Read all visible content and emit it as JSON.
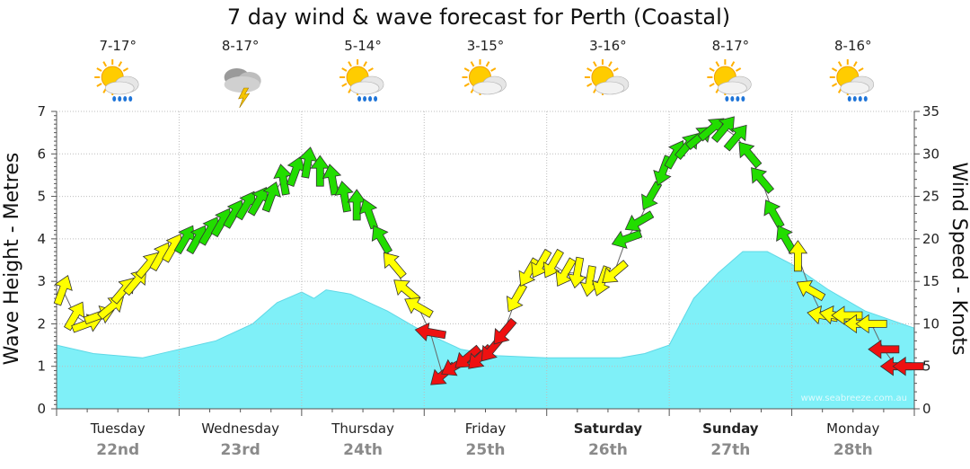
{
  "chart_data": {
    "type": "area",
    "title": "7 day wind & wave forecast for Perth (Coastal)",
    "ylabel": "Wave Height - Metres",
    "y2label": "Wind Speed - Knots",
    "ylim": [
      0,
      7
    ],
    "y2lim": [
      0,
      35
    ],
    "yticks": [
      "0",
      "1",
      "2",
      "3",
      "4",
      "5",
      "6",
      "7"
    ],
    "y2ticks": [
      "0",
      "5",
      "10",
      "15",
      "20",
      "25",
      "30",
      "35"
    ],
    "grid": true,
    "watermark": "www.seabreeze.com.au",
    "days": [
      {
        "name": "Tuesday",
        "date": "22nd",
        "temp": "7-17°",
        "icon": "sun-cloud-rain-icon",
        "bold": false
      },
      {
        "name": "Wednesday",
        "date": "23rd",
        "temp": "8-17°",
        "icon": "thunderstorm-icon",
        "bold": false
      },
      {
        "name": "Thursday",
        "date": "24th",
        "temp": "5-14°",
        "icon": "sun-cloud-rain-icon",
        "bold": false
      },
      {
        "name": "Friday",
        "date": "25th",
        "temp": "3-15°",
        "icon": "partly-cloudy-icon",
        "bold": false
      },
      {
        "name": "Saturday",
        "date": "26th",
        "temp": "3-16°",
        "icon": "partly-cloudy-icon",
        "bold": true
      },
      {
        "name": "Sunday",
        "date": "27th",
        "temp": "8-17°",
        "icon": "sun-cloud-rain-icon",
        "bold": true
      },
      {
        "name": "Monday",
        "date": "28th",
        "temp": "8-16°",
        "icon": "sun-cloud-rain-icon",
        "bold": false
      }
    ],
    "wave_height_m": {
      "x_day": [
        0,
        0.3,
        0.7,
        1.0,
        1.3,
        1.6,
        1.8,
        2.0,
        2.1,
        2.2,
        2.4,
        2.7,
        3.0,
        3.3,
        3.6,
        4.0,
        4.3,
        4.6,
        4.8,
        5.0,
        5.2,
        5.4,
        5.6,
        5.8,
        6.0,
        6.3,
        6.6,
        7.0
      ],
      "y": [
        1.5,
        1.3,
        1.2,
        1.4,
        1.6,
        2.0,
        2.5,
        2.75,
        2.6,
        2.8,
        2.7,
        2.3,
        1.8,
        1.4,
        1.25,
        1.2,
        1.2,
        1.2,
        1.3,
        1.5,
        2.6,
        3.2,
        3.7,
        3.7,
        3.4,
        2.8,
        2.3,
        1.9
      ]
    },
    "wind": {
      "x_day": [
        0.0,
        0.1,
        0.2,
        0.3,
        0.4,
        0.5,
        0.6,
        0.7,
        0.8,
        0.9,
        1.0,
        1.1,
        1.2,
        1.3,
        1.4,
        1.5,
        1.6,
        1.7,
        1.8,
        1.9,
        2.0,
        2.1,
        2.2,
        2.3,
        2.4,
        2.5,
        2.6,
        2.7,
        2.8,
        2.9,
        3.0,
        3.1,
        3.2,
        3.3,
        3.4,
        3.5,
        3.6,
        3.7,
        3.8,
        3.9,
        4.0,
        4.1,
        4.2,
        4.3,
        4.4,
        4.5,
        4.6,
        4.7,
        4.8,
        4.9,
        5.0,
        5.1,
        5.2,
        5.3,
        5.4,
        5.5,
        5.6,
        5.7,
        5.8,
        5.9,
        6.0,
        6.1,
        6.2,
        6.3,
        6.4,
        6.5,
        6.6,
        6.7,
        6.8,
        6.9
      ],
      "knots": [
        14,
        11,
        10,
        11,
        12,
        14,
        15,
        17,
        18,
        19,
        20,
        20,
        21,
        22,
        23,
        24,
        24.5,
        25,
        27,
        28,
        29,
        28,
        27,
        25,
        24,
        23,
        20,
        17,
        14,
        12,
        9,
        4,
        5,
        6,
        6,
        7,
        9,
        13,
        16,
        17,
        17,
        16,
        16,
        15,
        15,
        16,
        20,
        22,
        25,
        28,
        30,
        31,
        32,
        33,
        33,
        32,
        30,
        27,
        23,
        20,
        18,
        14,
        11,
        11,
        11,
        10,
        10,
        7,
        5,
        5
      ],
      "dir_deg": [
        200,
        210,
        250,
        250,
        230,
        220,
        220,
        220,
        210,
        210,
        210,
        210,
        210,
        210,
        210,
        210,
        210,
        200,
        170,
        200,
        190,
        180,
        170,
        170,
        180,
        160,
        150,
        140,
        130,
        120,
        100,
        50,
        60,
        50,
        45,
        40,
        40,
        30,
        30,
        30,
        30,
        30,
        10,
        10,
        20,
        50,
        70,
        60,
        30,
        20,
        210,
        220,
        230,
        230,
        220,
        220,
        140,
        140,
        150,
        150,
        180,
        120,
        100,
        100,
        90,
        90,
        90,
        90,
        90,
        90
      ]
    }
  }
}
